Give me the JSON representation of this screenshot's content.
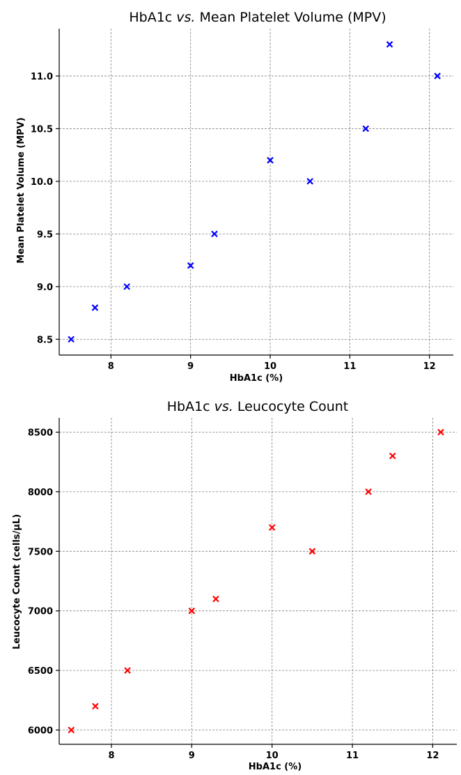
{
  "chart_data": [
    {
      "type": "scatter",
      "title_prefix": "HbA1c ",
      "title_italic": "vs.",
      "title_suffix": " Mean Platelet Volume (MPV)",
      "xlabel": "HbA1c (%)",
      "ylabel": "Mean Platelet Volume (MPV)",
      "xlim": [
        7.35,
        12.3
      ],
      "ylim": [
        8.35,
        11.45
      ],
      "xticks": [
        8,
        9,
        10,
        11,
        12
      ],
      "yticks": [
        8.5,
        9.0,
        9.5,
        10.0,
        10.5,
        11.0
      ],
      "ytick_labels": [
        "8.5",
        "9.0",
        "9.5",
        "10.0",
        "10.5",
        "11.0"
      ],
      "grid": true,
      "marker": "x",
      "color": "#0000ff",
      "x": [
        7.5,
        7.8,
        8.2,
        9.0,
        9.3,
        10.0,
        10.5,
        11.2,
        11.5,
        12.1
      ],
      "y": [
        8.5,
        8.8,
        9.0,
        9.2,
        9.5,
        10.2,
        10.0,
        10.5,
        11.3,
        11.0
      ]
    },
    {
      "type": "scatter",
      "title_prefix": "HbA1c ",
      "title_italic": "vs.",
      "title_suffix": " Leucocyte Count",
      "xlabel": "HbA1c (%)",
      "ylabel": "Leucocyte Count (cells/µL)",
      "xlim": [
        7.35,
        12.3
      ],
      "ylim": [
        5880,
        8620
      ],
      "xticks": [
        8,
        9,
        10,
        11,
        12
      ],
      "yticks": [
        6000,
        6500,
        7000,
        7500,
        8000,
        8500
      ],
      "ytick_labels": [
        "6000",
        "6500",
        "7000",
        "7500",
        "8000",
        "8500"
      ],
      "grid": true,
      "marker": "x",
      "color": "#ff0000",
      "x": [
        7.5,
        7.8,
        8.2,
        9.0,
        9.3,
        10.0,
        10.5,
        11.2,
        11.5,
        12.1
      ],
      "y": [
        6000,
        6200,
        6500,
        7000,
        7100,
        7700,
        7500,
        8000,
        8300,
        8500
      ]
    }
  ]
}
